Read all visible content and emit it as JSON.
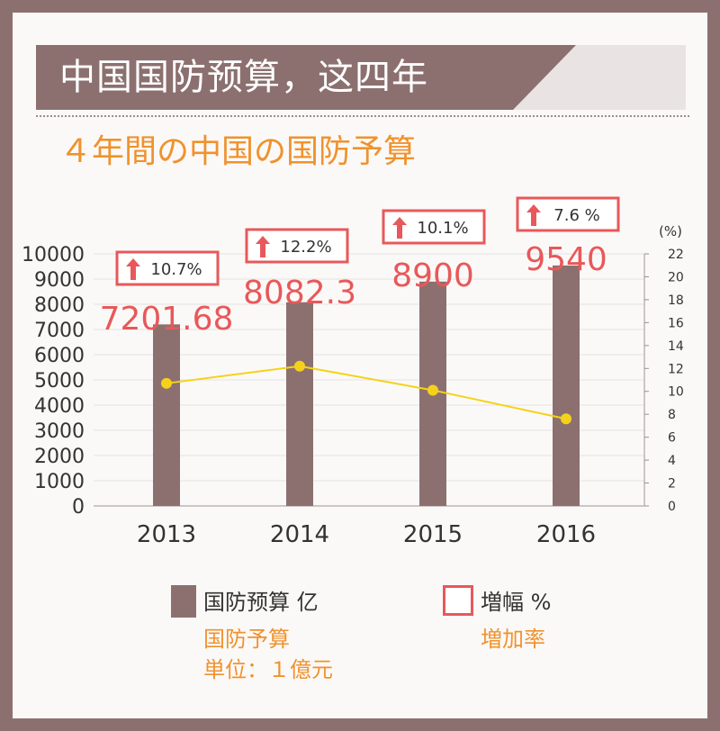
{
  "header": {
    "title": "中国国防预算，这四年",
    "subtitle": "４年間の中国の国防予算"
  },
  "colors": {
    "frame": "#8c7070",
    "bar": "#8c7070",
    "line": "#f5d21a",
    "label_red": "#e8585a",
    "subtitle_orange": "#f0922e"
  },
  "legend": {
    "budget": {
      "label": "国防预算  亿",
      "sub1": "国防予算",
      "sub2": "単位：１億元"
    },
    "growth": {
      "label": "増幅  %",
      "sub1": "増加率"
    }
  },
  "chart_data": {
    "type": "bar",
    "categories": [
      "2013",
      "2014",
      "2015",
      "2016"
    ],
    "series": [
      {
        "name": "国防预算  亿",
        "type": "bar",
        "axis": "left",
        "values": [
          7201.68,
          8082.3,
          8900,
          9540
        ],
        "value_labels": [
          "7201.68",
          "8082.3",
          "8900",
          "9540"
        ]
      },
      {
        "name": "増幅  %",
        "type": "line",
        "axis": "right",
        "values": [
          10.7,
          12.2,
          10.1,
          7.6
        ],
        "value_labels": [
          "10.7%",
          "12.2%",
          "10.1%",
          "7.6 %"
        ]
      }
    ],
    "y_left": {
      "min": 0,
      "max": 10000,
      "ticks": [
        "0",
        "1000",
        "2000",
        "3000",
        "4000",
        "5000",
        "6000",
        "7000",
        "8000",
        "9000",
        "10000"
      ]
    },
    "y_right": {
      "min": 0,
      "max": 22,
      "unit_label": "(%)",
      "ticks": [
        "0",
        "2",
        "4",
        "6",
        "8",
        "10",
        "12",
        "14",
        "16",
        "18",
        "20",
        "22"
      ]
    },
    "grid": true
  }
}
